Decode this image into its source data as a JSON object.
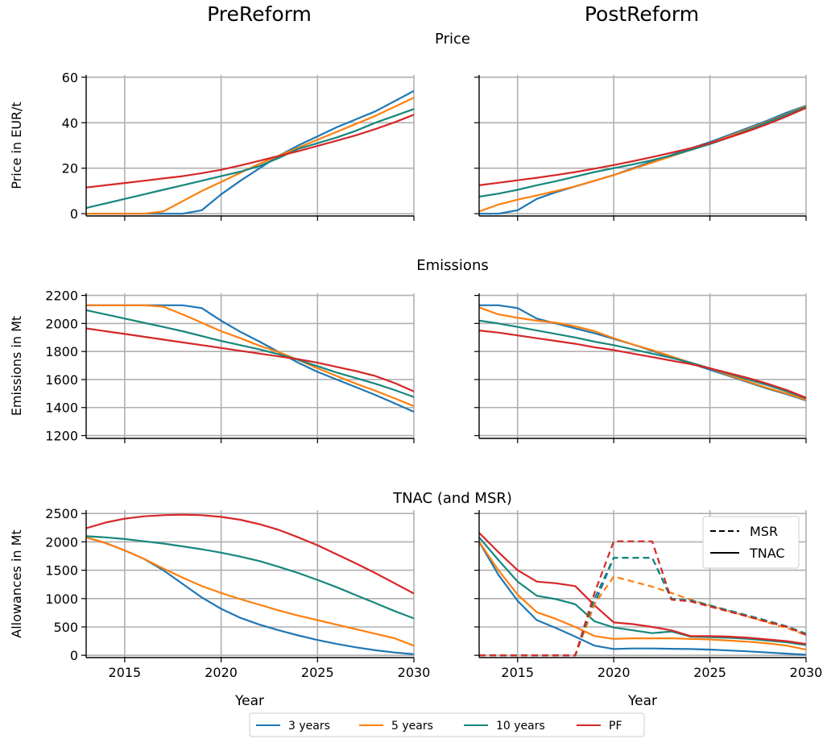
{
  "figure": {
    "col_titles": [
      "PreReform",
      "PostReform"
    ],
    "row_titles": [
      "Price",
      "Emissions",
      "TNAC (and MSR)"
    ],
    "xlabel": "Year",
    "legend": [
      "3 years",
      "5 years",
      "10 years",
      "PF"
    ],
    "msr_legend": [
      "MSR",
      "TNAC"
    ]
  },
  "colors": {
    "3 years": "#1f77b4",
    "5 years": "#ff7f0e",
    "10 years": "#17877c",
    "PF": "#d62728"
  },
  "chart_data": [
    {
      "type": "line",
      "title": "Price",
      "panel": "PreReform",
      "ylabel": "Price in EUR/t",
      "xlim": [
        2013,
        2030
      ],
      "ylim": [
        -1,
        61
      ],
      "yticks": [
        0,
        20,
        40,
        60
      ],
      "xticks": [
        2015,
        2020,
        2025,
        2030
      ],
      "show_xticklabels": false,
      "x": [
        2013,
        2014,
        2015,
        2016,
        2017,
        2018,
        2019,
        2020,
        2021,
        2022,
        2023,
        2024,
        2025,
        2026,
        2027,
        2028,
        2029,
        2030
      ],
      "series": [
        {
          "name": "3 years",
          "values": [
            0,
            0,
            0,
            0,
            0,
            0,
            1.5,
            8.5,
            14.5,
            20,
            25.5,
            30,
            34,
            38,
            41.5,
            45,
            49.5,
            54
          ]
        },
        {
          "name": "5 years",
          "values": [
            0,
            0,
            0,
            0,
            1,
            5.5,
            10,
            14,
            18,
            22,
            25.5,
            29,
            32.5,
            36,
            39.5,
            43,
            47,
            51
          ]
        },
        {
          "name": "10 years",
          "values": [
            2.5,
            4.5,
            6.5,
            8.5,
            10.5,
            12.5,
            14.5,
            16.5,
            18.5,
            21,
            24.5,
            28.5,
            31,
            33.5,
            36.5,
            40,
            43,
            46
          ]
        },
        {
          "name": "PF",
          "values": [
            11.5,
            12.5,
            13.5,
            14.5,
            15.5,
            16.5,
            17.8,
            19.3,
            21.2,
            23.3,
            25.4,
            27.5,
            29.8,
            32.1,
            34.5,
            37.2,
            40.2,
            43.5
          ]
        }
      ]
    },
    {
      "type": "line",
      "title": "Price",
      "panel": "PostReform",
      "xlim": [
        2013,
        2030
      ],
      "ylim": [
        -1,
        61
      ],
      "yticks": [
        0,
        20,
        40,
        60
      ],
      "xticks": [
        2015,
        2020,
        2025,
        2030
      ],
      "show_xticklabels": false,
      "x": [
        2013,
        2014,
        2015,
        2016,
        2017,
        2018,
        2019,
        2020,
        2021,
        2022,
        2023,
        2024,
        2025,
        2026,
        2027,
        2028,
        2029,
        2030
      ],
      "series": [
        {
          "name": "3 years",
          "values": [
            0,
            0,
            1.5,
            6.5,
            9.5,
            12,
            14.5,
            17,
            20,
            23,
            25.8,
            28.7,
            31.5,
            34.6,
            37.8,
            41,
            44.5,
            47.5
          ]
        },
        {
          "name": "5 years",
          "values": [
            1,
            4,
            6.2,
            8,
            10,
            12,
            14.5,
            17,
            19.7,
            22.5,
            25.3,
            28,
            31,
            34,
            37.2,
            40.5,
            43.8,
            47.3
          ]
        },
        {
          "name": "10 years",
          "values": [
            7.5,
            8.8,
            10.5,
            12.5,
            14.3,
            16.3,
            18.3,
            20,
            21.7,
            23.5,
            25.6,
            28,
            30.6,
            33.5,
            36.8,
            40.2,
            43.6,
            47
          ]
        },
        {
          "name": "PF",
          "values": [
            12.5,
            13.6,
            14.7,
            15.8,
            17,
            18.3,
            19.8,
            21.4,
            23.1,
            24.9,
            26.8,
            28.8,
            31,
            33.5,
            36.3,
            39.4,
            42.8,
            46.5
          ]
        }
      ]
    },
    {
      "type": "line",
      "title": "Emissions",
      "panel": "PreReform",
      "ylabel": "Emissions in Mt",
      "xlim": [
        2013,
        2030
      ],
      "ylim": [
        1180,
        2215
      ],
      "yticks": [
        1200,
        1400,
        1600,
        1800,
        2000,
        2200
      ],
      "xticks": [
        2015,
        2020,
        2025,
        2030
      ],
      "show_xticklabels": false,
      "x": [
        2013,
        2014,
        2015,
        2016,
        2017,
        2018,
        2019,
        2020,
        2021,
        2022,
        2023,
        2024,
        2025,
        2026,
        2027,
        2028,
        2029,
        2030
      ],
      "series": [
        {
          "name": "3 years",
          "values": [
            2130,
            2130,
            2130,
            2130,
            2130,
            2130,
            2110,
            2020,
            1940,
            1870,
            1795,
            1720,
            1655,
            1600,
            1545,
            1490,
            1430,
            1370
          ]
        },
        {
          "name": "5 years",
          "values": [
            2130,
            2130,
            2130,
            2130,
            2120,
            2065,
            2005,
            1945,
            1895,
            1840,
            1795,
            1740,
            1680,
            1625,
            1570,
            1520,
            1465,
            1410
          ]
        },
        {
          "name": "10 years",
          "values": [
            2095,
            2065,
            2035,
            2005,
            1975,
            1945,
            1910,
            1875,
            1845,
            1815,
            1780,
            1740,
            1695,
            1650,
            1610,
            1570,
            1525,
            1475
          ]
        },
        {
          "name": "PF",
          "values": [
            1965,
            1945,
            1925,
            1905,
            1885,
            1865,
            1845,
            1825,
            1805,
            1785,
            1765,
            1745,
            1720,
            1690,
            1660,
            1625,
            1575,
            1515
          ]
        }
      ]
    },
    {
      "type": "line",
      "title": "Emissions",
      "panel": "PostReform",
      "xlim": [
        2013,
        2030
      ],
      "ylim": [
        1180,
        2215
      ],
      "yticks": [
        1200,
        1400,
        1600,
        1800,
        2000,
        2200
      ],
      "xticks": [
        2015,
        2020,
        2025,
        2030
      ],
      "show_xticklabels": false,
      "x": [
        2013,
        2014,
        2015,
        2016,
        2017,
        2018,
        2019,
        2020,
        2021,
        2022,
        2023,
        2024,
        2025,
        2026,
        2027,
        2028,
        2029,
        2030
      ],
      "series": [
        {
          "name": "3 years",
          "values": [
            2130,
            2130,
            2110,
            2035,
            2000,
            1965,
            1930,
            1890,
            1850,
            1805,
            1760,
            1715,
            1670,
            1625,
            1580,
            1535,
            1495,
            1450
          ]
        },
        {
          "name": "5 years",
          "values": [
            2115,
            2065,
            2040,
            2020,
            2005,
            1980,
            1945,
            1895,
            1850,
            1810,
            1765,
            1720,
            1680,
            1630,
            1585,
            1540,
            1500,
            1455
          ]
        },
        {
          "name": "10 years",
          "values": [
            2020,
            2000,
            1975,
            1950,
            1925,
            1900,
            1870,
            1845,
            1815,
            1785,
            1755,
            1720,
            1680,
            1640,
            1600,
            1560,
            1515,
            1465
          ]
        },
        {
          "name": "PF",
          "values": [
            1950,
            1935,
            1915,
            1895,
            1875,
            1855,
            1830,
            1810,
            1785,
            1760,
            1735,
            1710,
            1680,
            1645,
            1610,
            1570,
            1525,
            1470
          ]
        }
      ]
    },
    {
      "type": "line",
      "title": "TNAC (and MSR)",
      "panel": "PreReform",
      "ylabel": "Allowances in Mt",
      "xlabel": "Year",
      "xlim": [
        2013,
        2030
      ],
      "ylim": [
        -40,
        2560
      ],
      "yticks": [
        0,
        500,
        1000,
        1500,
        2000,
        2500
      ],
      "xticks": [
        2015,
        2020,
        2025,
        2030
      ],
      "show_xticklabels": true,
      "x": [
        2013,
        2014,
        2015,
        2016,
        2017,
        2018,
        2019,
        2020,
        2021,
        2022,
        2023,
        2024,
        2025,
        2026,
        2027,
        2028,
        2029,
        2030
      ],
      "series": [
        {
          "name": "3 years",
          "values": [
            2080,
            1980,
            1850,
            1700,
            1500,
            1260,
            1020,
            820,
            660,
            540,
            440,
            350,
            270,
            200,
            140,
            90,
            50,
            20
          ]
        },
        {
          "name": "5 years",
          "values": [
            2080,
            1980,
            1850,
            1700,
            1530,
            1370,
            1220,
            1100,
            990,
            890,
            790,
            700,
            620,
            540,
            460,
            380,
            300,
            170
          ]
        },
        {
          "name": "10 years",
          "values": [
            2100,
            2080,
            2050,
            2010,
            1970,
            1920,
            1870,
            1810,
            1740,
            1660,
            1560,
            1450,
            1330,
            1200,
            1060,
            920,
            780,
            650
          ]
        },
        {
          "name": "PF",
          "values": [
            2240,
            2340,
            2410,
            2450,
            2470,
            2480,
            2470,
            2440,
            2390,
            2310,
            2210,
            2080,
            1940,
            1780,
            1620,
            1450,
            1270,
            1090
          ]
        }
      ]
    },
    {
      "type": "line",
      "title": "TNAC (and MSR)",
      "panel": "PostReform",
      "xlabel": "Year",
      "xlim": [
        2013,
        2030
      ],
      "ylim": [
        -40,
        2560
      ],
      "yticks": [
        0,
        500,
        1000,
        1500,
        2000,
        2500
      ],
      "xticks": [
        2015,
        2020,
        2025,
        2030
      ],
      "show_xticklabels": true,
      "legend_position": "upper right",
      "x": [
        2013,
        2014,
        2015,
        2016,
        2017,
        2018,
        2019,
        2020,
        2021,
        2022,
        2023,
        2024,
        2025,
        2026,
        2027,
        2028,
        2029,
        2030
      ],
      "series": [
        {
          "name": "3 years",
          "kind": "TNAC",
          "values": [
            2000,
            1420,
            960,
            620,
            480,
            330,
            170,
            110,
            120,
            120,
            115,
            110,
            100,
            85,
            70,
            50,
            30,
            10
          ]
        },
        {
          "name": "5 years",
          "kind": "TNAC",
          "values": [
            2000,
            1500,
            1070,
            760,
            640,
            500,
            340,
            290,
            300,
            300,
            300,
            290,
            280,
            260,
            240,
            210,
            170,
            100
          ]
        },
        {
          "name": "10 years",
          "kind": "TNAC",
          "values": [
            2080,
            1680,
            1300,
            1050,
            990,
            900,
            600,
            490,
            440,
            390,
            420,
            330,
            320,
            310,
            290,
            260,
            230,
            180
          ]
        },
        {
          "name": "PF",
          "kind": "TNAC",
          "values": [
            2160,
            1820,
            1500,
            1300,
            1270,
            1220,
            880,
            580,
            550,
            500,
            440,
            340,
            340,
            330,
            310,
            280,
            250,
            200
          ]
        },
        {
          "name": "3 years",
          "kind": "MSR",
          "values": [
            0,
            0,
            0,
            0,
            0,
            0,
            900,
            1720,
            1720,
            1720,
            1000,
            960,
            870,
            780,
            690,
            600,
            510,
            380
          ]
        },
        {
          "name": "5 years",
          "kind": "MSR",
          "values": [
            0,
            0,
            0,
            0,
            0,
            0,
            900,
            1390,
            1300,
            1210,
            1100,
            980,
            880,
            780,
            680,
            580,
            480,
            360
          ]
        },
        {
          "name": "10 years",
          "kind": "MSR",
          "values": [
            0,
            0,
            0,
            0,
            0,
            0,
            1000,
            1720,
            1720,
            1720,
            990,
            970,
            880,
            790,
            700,
            610,
            510,
            380
          ]
        },
        {
          "name": "PF",
          "kind": "MSR",
          "values": [
            0,
            0,
            0,
            0,
            0,
            0,
            1100,
            2010,
            2010,
            2010,
            980,
            950,
            860,
            770,
            680,
            590,
            500,
            360
          ]
        }
      ]
    }
  ]
}
